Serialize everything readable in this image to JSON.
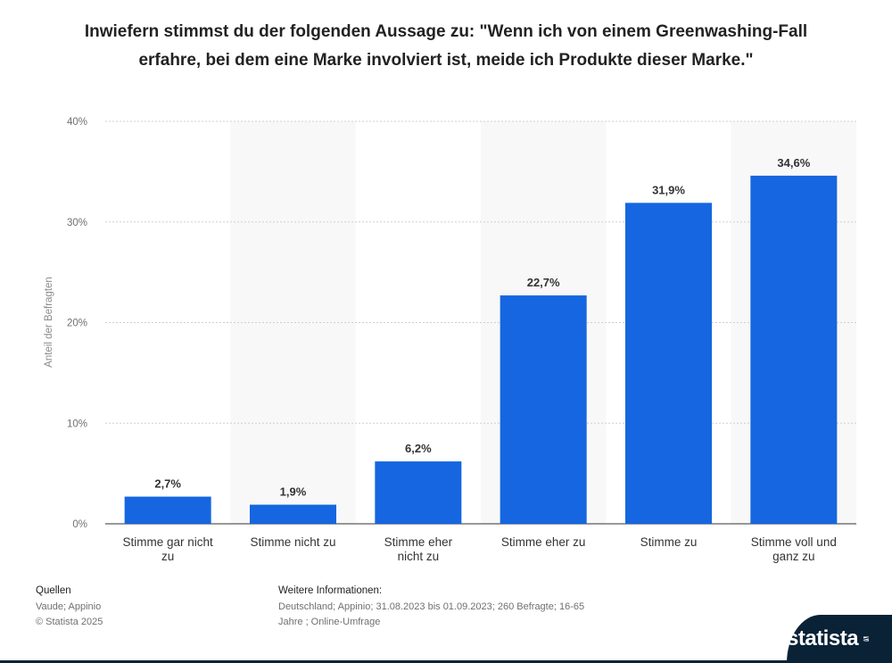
{
  "chart_data": {
    "type": "bar",
    "title": "Inwiefern stimmst du der folgenden Aussage zu: \"Wenn ich von einem Greenwashing-Fall erfahre, bei dem eine Marke involviert ist, meide ich Produkte dieser Marke.\"",
    "categories": [
      [
        "Stimme gar nicht",
        "zu"
      ],
      [
        "Stimme nicht zu"
      ],
      [
        "Stimme eher",
        "nicht zu"
      ],
      [
        "Stimme eher zu"
      ],
      [
        "Stimme zu"
      ],
      [
        "Stimme voll und",
        "ganz zu"
      ]
    ],
    "values": [
      2.7,
      1.9,
      6.2,
      22.7,
      31.9,
      34.6
    ],
    "value_labels": [
      "2,7%",
      "1,9%",
      "6,2%",
      "22,7%",
      "31,9%",
      "34,6%"
    ],
    "ylabel": "Anteil der Befragten",
    "ylim": [
      0,
      40
    ],
    "yticks": [
      0,
      10,
      20,
      30,
      40
    ],
    "ytick_labels": [
      "0%",
      "10%",
      "20%",
      "30%",
      "40%"
    ],
    "bar_color": "#1566e0",
    "grid": true
  },
  "footer": {
    "sources_heading": "Quellen",
    "sources_line1": "Vaude; Appinio",
    "sources_line2": "© Statista 2025",
    "info_heading": "Weitere Informationen:",
    "info_line1": "Deutschland; Appinio; 31.08.2023 bis 01.09.2023; 260 Befragte; 16-65",
    "info_line2": "Jahre ; Online-Umfrage"
  },
  "brand": {
    "logo_text": "statista"
  }
}
